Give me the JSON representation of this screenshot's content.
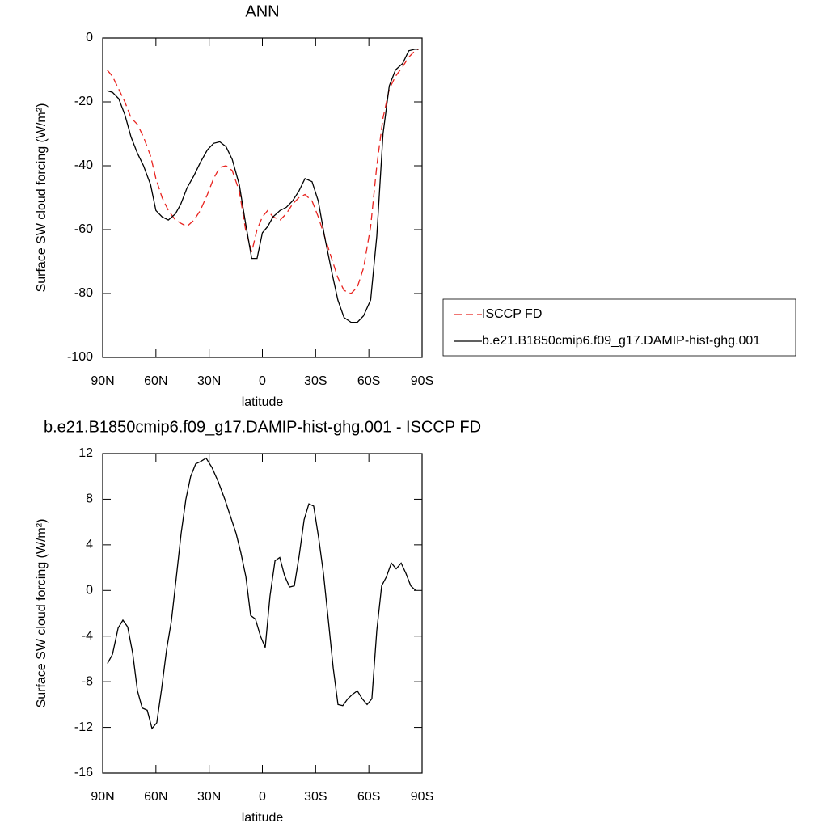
{
  "chart_data": [
    {
      "type": "line",
      "title": "ANN",
      "xlabel": "latitude",
      "ylabel": "Surface SW cloud forcing (W/m²)",
      "x": [
        87.5,
        84.5,
        81,
        77.5,
        74,
        70.5,
        67,
        63,
        60,
        56.5,
        53,
        49,
        46,
        42.5,
        38.5,
        35,
        31,
        27.5,
        24,
        20.5,
        17,
        13,
        9.5,
        6,
        3,
        0,
        -3,
        -6,
        -10,
        -13.5,
        -17,
        -20.5,
        -24,
        -28,
        -31.5,
        -35,
        -39,
        -42.5,
        -46,
        -50,
        -53.5,
        -57,
        -61,
        -64.5,
        -68,
        -71.5,
        -75,
        -79,
        -82.5,
        -86,
        -88
      ],
      "series": [
        {
          "name": "ISCCP FD",
          "color": "#e8231f",
          "linestyle": "dashed",
          "values": [
            -10,
            -12,
            -16,
            -20,
            -25,
            -27,
            -31,
            -37,
            -44,
            -50,
            -54,
            -57,
            -58,
            -59,
            -57,
            -54,
            -49,
            -44,
            -40.5,
            -40,
            -41.5,
            -48,
            -60,
            -67,
            -60,
            -56,
            -54,
            -56,
            -57,
            -55,
            -52,
            -50,
            -49,
            -51,
            -56,
            -62,
            -69,
            -75,
            -79,
            -80,
            -78,
            -72,
            -59,
            -40,
            -25,
            -16,
            -12,
            -9,
            -6,
            -4,
            -3.5
          ]
        },
        {
          "name": "b.e21.B1850cmip6.f09_g17.DAMIP-hist-ghg.001",
          "color": "#000000",
          "linestyle": "solid",
          "values": [
            -16.5,
            -17,
            -19,
            -24,
            -31,
            -36,
            -40,
            -46,
            -54,
            -56,
            -57,
            -55,
            -52,
            -47,
            -43,
            -39,
            -35,
            -33,
            -32.5,
            -34,
            -38,
            -46,
            -58,
            -69,
            -69,
            -61,
            -59,
            -56,
            -54,
            -53,
            -51,
            -48,
            -44,
            -45,
            -51,
            -62,
            -73,
            -82,
            -87.5,
            -89,
            -89,
            -87,
            -82,
            -62,
            -30,
            -15,
            -10,
            -8,
            -4,
            -3.5,
            -3.5
          ]
        }
      ],
      "xlim": [
        90,
        -90
      ],
      "xticks": [
        {
          "value": 90,
          "label": "90N"
        },
        {
          "value": 60,
          "label": "60N"
        },
        {
          "value": 30,
          "label": "30N"
        },
        0,
        {
          "value": -30,
          "label": "30S"
        },
        {
          "value": -60,
          "label": "60S"
        },
        {
          "value": -90,
          "label": "90S"
        }
      ],
      "ylim": [
        -100,
        0
      ],
      "yticks": [
        -100,
        -80,
        -60,
        -40,
        -20,
        0
      ],
      "legend": "right"
    },
    {
      "type": "line",
      "title": "b.e21.B1850cmip6.f09_g17.DAMIP-hist-ghg.001 - ISCCP FD",
      "xlabel": "latitude",
      "ylabel": "Surface SW cloud forcing (W/m²)",
      "x": [
        87.3,
        84.5,
        81.3,
        78.6,
        75.9,
        73.1,
        70.4,
        67.7,
        64.9,
        62.2,
        59.5,
        56.7,
        54.0,
        51.3,
        48.6,
        45.8,
        43.1,
        40.4,
        37.6,
        34.9,
        31.7,
        28.5,
        24.8,
        21.2,
        18.0,
        14.8,
        12.1,
        9.3,
        6.6,
        3.9,
        1.1,
        -1.6,
        -4.3,
        -7.1,
        -9.8,
        -12.5,
        -15.3,
        -18.0,
        -20.7,
        -23.5,
        -26.2,
        -28.9,
        -31.7,
        -34.4,
        -37.1,
        -39.9,
        -42.6,
        -45.3,
        -48.1,
        -50.8,
        -53.5,
        -56.3,
        -59.0,
        -61.7,
        -64.5,
        -67.2,
        -69.9,
        -72.7,
        -75.4,
        -78.2,
        -80.9,
        -83.6,
        -86.4
      ],
      "series": [
        {
          "color": "#000000",
          "linestyle": "solid",
          "values": [
            -6.4,
            -5.6,
            -3.3,
            -2.6,
            -3.2,
            -5.5,
            -8.8,
            -10.3,
            -10.5,
            -12.1,
            -11.6,
            -8.5,
            -5.2,
            -2.7,
            1,
            5,
            8,
            10,
            11.1,
            11.3,
            11.6,
            10.8,
            9.5,
            8,
            6.5,
            5,
            3.3,
            1.2,
            -2.2,
            -2.5,
            -4,
            -5,
            -0.5,
            2.6,
            2.9,
            1.3,
            0.3,
            0.4,
            3,
            6.2,
            7.6,
            7.4,
            4.6,
            1.5,
            -2.5,
            -6.8,
            -10,
            -10.1,
            -9.5,
            -9.1,
            -8.8,
            -9.5,
            -10,
            -9.5,
            -3.5,
            0.4,
            1.2,
            2.4,
            1.9,
            2.4,
            1.5,
            0.4,
            0
          ]
        }
      ],
      "xlim": [
        90,
        -90
      ],
      "xticks": [
        {
          "value": 90,
          "label": "90N"
        },
        {
          "value": 60,
          "label": "60N"
        },
        {
          "value": 30,
          "label": "30N"
        },
        0,
        {
          "value": -30,
          "label": "30S"
        },
        {
          "value": -60,
          "label": "60S"
        },
        {
          "value": -90,
          "label": "90S"
        }
      ],
      "ylim": [
        -16,
        12
      ],
      "yticks": [
        -16,
        -12,
        -8,
        -4,
        0,
        4,
        8,
        12
      ]
    }
  ]
}
